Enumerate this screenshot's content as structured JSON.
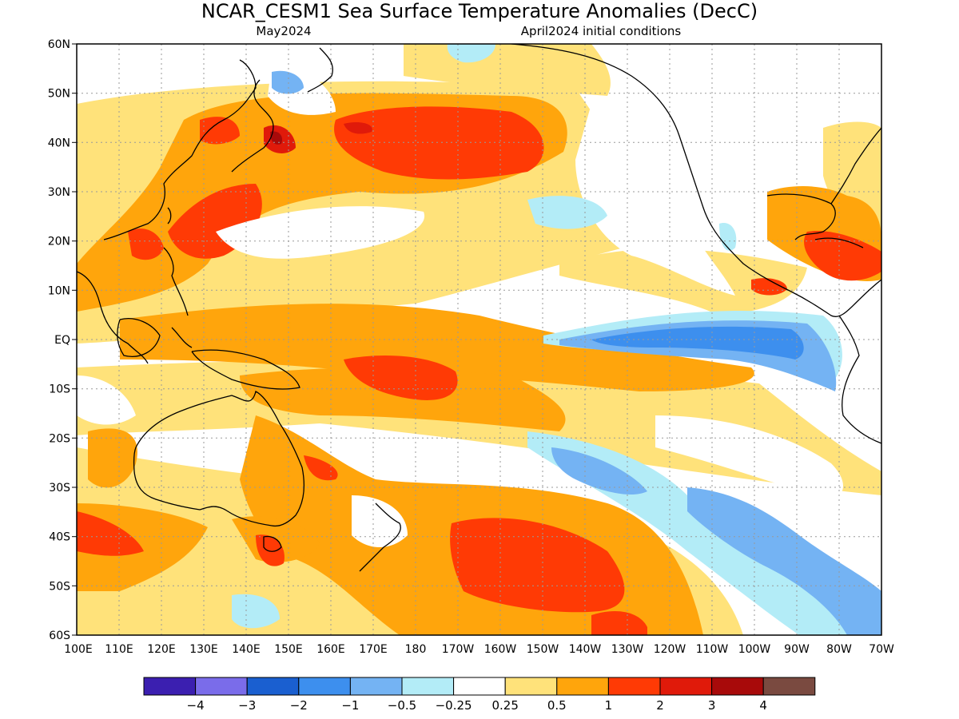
{
  "title": "NCAR_CESM1 Sea Surface Temperature Anomalies (DecC)",
  "subtitle_left": "May2024",
  "subtitle_right": "April2024 initial conditions",
  "lat_labels": [
    "60N",
    "50N",
    "40N",
    "30N",
    "20N",
    "10N",
    "EQ",
    "10S",
    "20S",
    "30S",
    "40S",
    "50S",
    "60S"
  ],
  "lon_labels": [
    "100E",
    "110E",
    "120E",
    "130E",
    "140E",
    "150E",
    "160E",
    "170E",
    "180",
    "170W",
    "160W",
    "150W",
    "140W",
    "130W",
    "120W",
    "110W",
    "100W",
    "90W",
    "80W",
    "70W"
  ],
  "colorbar": {
    "colors": [
      "#3b1fb0",
      "#7a6cea",
      "#1a5fd0",
      "#3d8fee",
      "#74b3f3",
      "#b3ecf7",
      "#ffffff",
      "#ffe27a",
      "#ffa50c",
      "#ff3a05",
      "#e01a0a",
      "#a80a0a",
      "#7a4a40"
    ],
    "labels": [
      "−4",
      "−3",
      "−2",
      "−1",
      "−0.5",
      "−0.25",
      "0.25",
      "0.5",
      "1",
      "2",
      "3",
      "4"
    ]
  },
  "legend_classes": [
    {
      "label": "< -4",
      "color": "#3b1fb0"
    },
    {
      "label": "-4 to -3",
      "color": "#7a6cea"
    },
    {
      "label": "-3 to -2",
      "color": "#1a5fd0"
    },
    {
      "label": "-2 to -1",
      "color": "#3d8fee"
    },
    {
      "label": "-1 to -0.5",
      "color": "#74b3f3"
    },
    {
      "label": "-0.5 to -0.25",
      "color": "#b3ecf7"
    },
    {
      "label": "-0.25 to 0.25",
      "color": "#ffffff"
    },
    {
      "label": "0.25 to 0.5",
      "color": "#ffe27a"
    },
    {
      "label": "0.5 to 1",
      "color": "#ffa50c"
    },
    {
      "label": "1 to 2",
      "color": "#ff3a05"
    },
    {
      "label": "2 to 3",
      "color": "#e01a0a"
    },
    {
      "label": "3 to 4",
      "color": "#a80a0a"
    },
    {
      "label": "> 4",
      "color": "#7a4a40"
    }
  ]
}
